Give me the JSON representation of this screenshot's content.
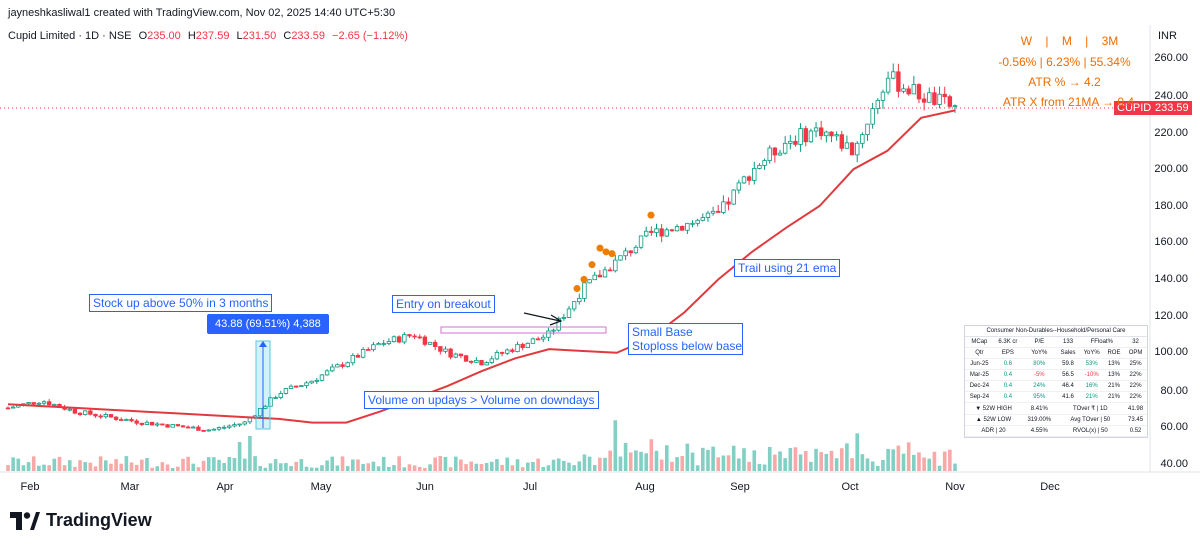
{
  "header": {
    "credit": "jayneshkasliwal1 created with TradingView.com, Nov 02, 2025 14:40 UTC+5:30",
    "symbol": "Cupid Limited · 1D · NSE",
    "o_label": "O",
    "o": "235.00",
    "h_label": "H",
    "h": "237.59",
    "l_label": "L",
    "l": "231.50",
    "c_label": "C",
    "c": "233.59",
    "change": "−2.65 (−1.12%)"
  },
  "perf": {
    "periods": "W    |    M    |    3M",
    "values": "-0.56% | 6.23% | 55.34%",
    "atr": "ATR % → 4.2",
    "atr_x": "ATR X from 21MA → 0.4"
  },
  "axis": {
    "currency": "INR",
    "price_tag_symbol": "CUPID",
    "price_tag_value": "233.59",
    "y_ticks": [
      "260.00",
      "240.00",
      "220.00",
      "200.00",
      "180.00",
      "160.00",
      "140.00",
      "120.00",
      "100.00",
      "80.00",
      "60.00",
      "40.00"
    ],
    "x_ticks": [
      "Feb",
      "Mar",
      "Apr",
      "May",
      "Jun",
      "Jul",
      "Aug",
      "Sep",
      "Oct",
      "Nov",
      "Dec"
    ]
  },
  "annotations": {
    "stock_up": "Stock up above 50% in 3 months",
    "measure": "43.88 (69.51%) 4,388",
    "entry": "Entry on breakout",
    "small_base": "Small Base",
    "stoploss": "Stoploss below base",
    "volume": "Volume on updays > Volume on downdays",
    "trail": "Trail using 21 ema"
  },
  "fund_table": {
    "sector": "Consumer Non-Durables--Household/Personal Care",
    "top": [
      "MCap",
      "6.3K cr",
      "P/E",
      "133",
      "FFloat%",
      "32"
    ],
    "header": [
      "Qtr",
      "EPS",
      "YoY%",
      "Sales",
      "YoY%",
      "ROE",
      "OPM"
    ],
    "rows": [
      [
        "Jun-25",
        "0.6",
        "80%",
        "59.8",
        "53%",
        "13%",
        "25%"
      ],
      [
        "Mar-25",
        "0.4",
        "-5%",
        "56.5",
        "-10%",
        "13%",
        "22%"
      ],
      [
        "Dec-24",
        "0.4",
        "24%",
        "46.4",
        "16%",
        "21%",
        "22%"
      ],
      [
        "Sep-24",
        "0.4",
        "95%",
        "41.6",
        "21%",
        "21%",
        "22%"
      ]
    ],
    "foot": [
      [
        "▼ 52W HIGH",
        "8.41%",
        "TOver ₹ | 1D",
        "41.98"
      ],
      [
        "▲ 52W LOW",
        "319.00%",
        "Avg TOver | 50",
        "73.45"
      ],
      [
        "ADR | 20",
        "4.55%",
        "RVOL(x) | 50",
        "0.52"
      ]
    ]
  },
  "brand": "TradingView",
  "colors": {
    "up": "#089981",
    "down": "#f23645",
    "ema": "#e03a3e",
    "volume_up": "#82cfc4",
    "volume_down": "#f7a9a7",
    "dots": "#ef7d00",
    "annotation": "#2962ff"
  },
  "chart_data": {
    "type": "candlestick",
    "title": "Cupid Limited · 1D · NSE",
    "y_unit": "INR",
    "ylim": [
      35,
      270
    ],
    "x_months": [
      "Feb",
      "Mar",
      "Apr",
      "May",
      "Jun",
      "Jul",
      "Aug",
      "Sep",
      "Oct",
      "Nov",
      "Dec"
    ],
    "last_close": 233.59,
    "ema_21_approx": [
      72,
      71,
      70,
      69,
      68,
      67,
      66,
      65,
      64,
      62,
      62,
      68,
      75,
      82,
      90,
      97,
      102,
      101,
      100,
      108,
      122,
      140,
      155,
      168,
      180,
      200,
      210,
      228,
      232
    ],
    "close_approx": [
      70,
      74,
      68,
      65,
      62,
      60,
      58,
      62,
      78,
      85,
      95,
      105,
      110,
      100,
      95,
      103,
      110,
      135,
      150,
      165,
      170,
      175,
      200,
      215,
      222,
      210,
      250,
      240,
      233.59
    ],
    "measure": {
      "change": 43.88,
      "percent": 69.51
    },
    "base_zone": [
      108,
      113
    ],
    "grid": false
  }
}
